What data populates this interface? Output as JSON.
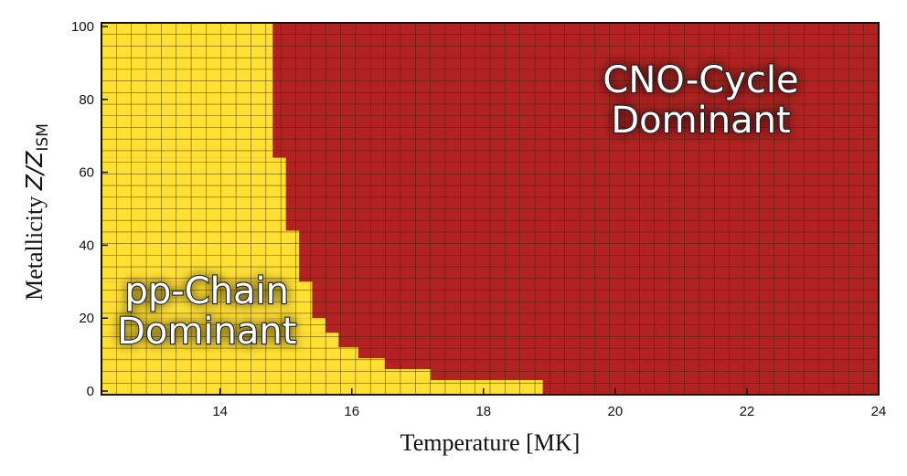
{
  "chart_data": {
    "type": "heatmap",
    "xlabel": "Temperature [MK]",
    "ylabel_main": "Metallicity ",
    "ylabel_var": "Z/Z",
    "ylabel_sub": "ISM",
    "xlim": [
      12.2,
      24
    ],
    "ylim": [
      -1,
      101
    ],
    "x_ticks": [
      14,
      16,
      18,
      20,
      22,
      24
    ],
    "y_ticks": [
      0,
      20,
      40,
      60,
      80,
      100
    ],
    "colors": {
      "pp": "#ffe033",
      "cno": "#b22222",
      "grid": "#3a2a00",
      "frame": "#111111"
    },
    "grid_cells": {
      "nx": 52,
      "ny": 32
    },
    "boundary_description": "pp-chain region on the left; CNO region on the right",
    "boundary": [
      {
        "z_min": 64,
        "z_max": 101,
        "T_boundary": 14.8
      },
      {
        "z_min": 44,
        "z_max": 64,
        "T_boundary": 15.0
      },
      {
        "z_min": 30,
        "z_max": 44,
        "T_boundary": 15.2
      },
      {
        "z_min": 20,
        "z_max": 30,
        "T_boundary": 15.4
      },
      {
        "z_min": 16,
        "z_max": 20,
        "T_boundary": 15.6
      },
      {
        "z_min": 12,
        "z_max": 16,
        "T_boundary": 15.8
      },
      {
        "z_min": 9,
        "z_max": 12,
        "T_boundary": 16.1
      },
      {
        "z_min": 6,
        "z_max": 9,
        "T_boundary": 16.5
      },
      {
        "z_min": 3,
        "z_max": 6,
        "T_boundary": 17.2
      },
      {
        "z_min": -1,
        "z_max": 3,
        "T_boundary": 18.9
      }
    ],
    "annotations": [
      {
        "lines": [
          "CNO-Cycle",
          "Dominant"
        ],
        "x": 21.3,
        "y": 80
      },
      {
        "lines": [
          "pp-Chain",
          "Dominant"
        ],
        "x": 13.8,
        "y": 22
      }
    ]
  }
}
